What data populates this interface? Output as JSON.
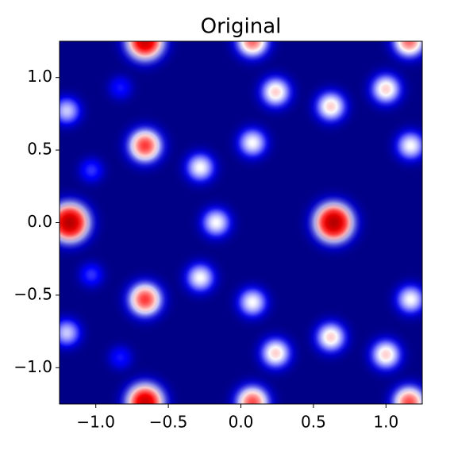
{
  "chart_data": {
    "type": "heatmap",
    "title": "Original",
    "colormap": "seismic",
    "x": [
      0.64,
      -1.18,
      -0.66,
      -0.66,
      -0.66,
      -0.66,
      0.08,
      0.08,
      1.16,
      1.16,
      0.24,
      0.24,
      1.0,
      1.0,
      0.62,
      0.62,
      0.08,
      0.08,
      -0.28,
      -0.28,
      -0.17,
      1.17,
      1.17,
      -1.2,
      -1.2,
      -1.03,
      -1.03,
      -0.83,
      -0.83
    ],
    "y": [
      0,
      0,
      1.25,
      -1.24,
      0.53,
      -0.53,
      1.25,
      -1.24,
      1.25,
      -1.24,
      0.9,
      -0.9,
      0.92,
      -0.91,
      0.8,
      -0.79,
      0.55,
      -0.55,
      0.38,
      -0.38,
      0,
      0.53,
      -0.53,
      0.77,
      -0.76,
      0.36,
      -0.36,
      0.93,
      -0.93
    ],
    "values": [
      0.9,
      0.9,
      0.85,
      0.85,
      0.7,
      0.7,
      0.65,
      0.68,
      0.65,
      0.68,
      0.55,
      0.55,
      0.55,
      0.55,
      0.55,
      0.55,
      0.5,
      0.5,
      0.5,
      0.5,
      0.5,
      0.5,
      0.5,
      0.45,
      0.45,
      0.3,
      0.3,
      0.27,
      0.27
    ],
    "xlim": [
      -1.25,
      1.25
    ],
    "ylim": [
      -1.25,
      1.25
    ],
    "xticks": [
      {
        "value": -1.0,
        "label": "−1.0"
      },
      {
        "value": -0.5,
        "label": "−0.5"
      },
      {
        "value": 0.0,
        "label": "0.0"
      },
      {
        "value": 0.5,
        "label": "0.5"
      },
      {
        "value": 1.0,
        "label": "1.0"
      }
    ],
    "yticks": [
      {
        "value": -1.0,
        "label": "−1.0"
      },
      {
        "value": -0.5,
        "label": "−0.5"
      },
      {
        "value": 0.0,
        "label": "0.0"
      },
      {
        "value": 0.5,
        "label": "0.5"
      },
      {
        "value": 1.0,
        "label": "1.0"
      }
    ]
  }
}
